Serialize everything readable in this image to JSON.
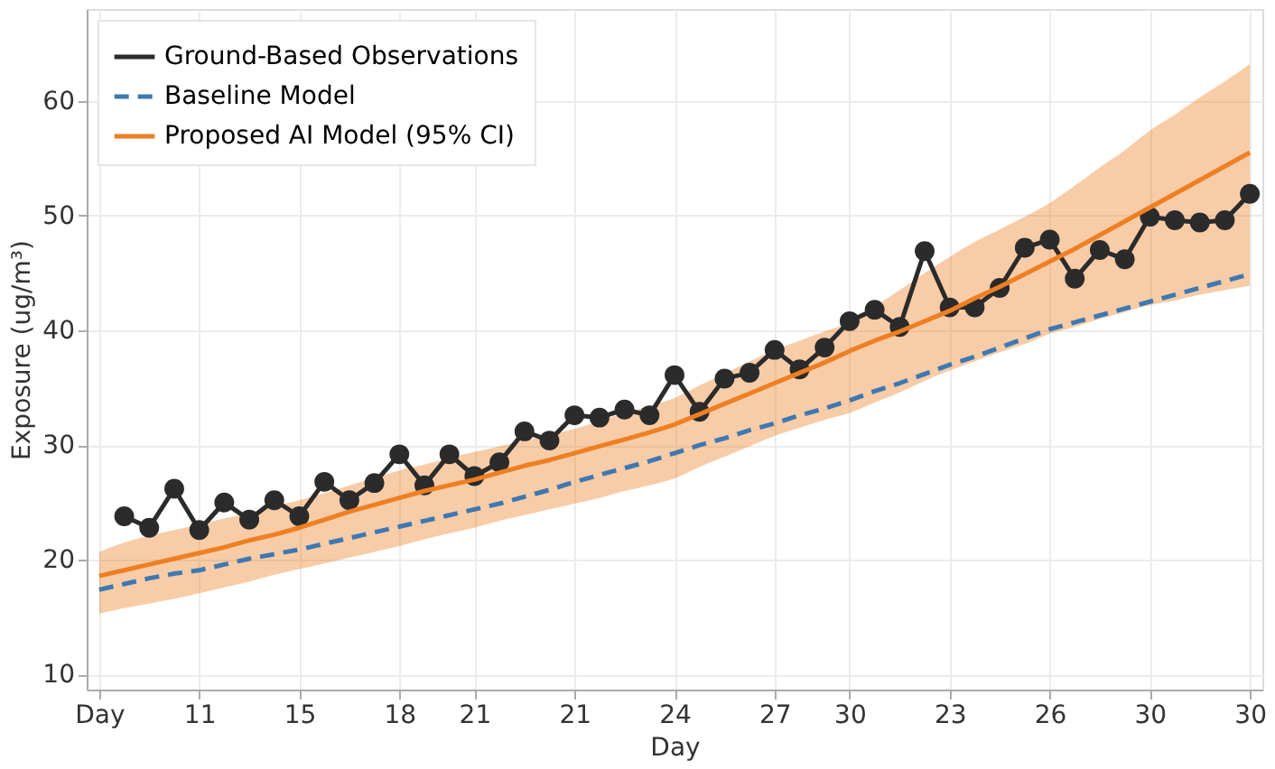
{
  "chart_data": {
    "type": "line",
    "xlabel": "Day",
    "ylabel": "Exposure (ug/m³)",
    "categories": [
      "Day",
      null,
      null,
      null,
      "11",
      null,
      null,
      null,
      "15",
      null,
      null,
      null,
      "18",
      null,
      null,
      "21",
      null,
      null,
      null,
      "21",
      null,
      null,
      null,
      "24",
      null,
      null,
      null,
      "27",
      null,
      null,
      "30",
      null,
      null,
      null,
      "23",
      null,
      null,
      null,
      "26",
      null,
      null,
      null,
      "30",
      null,
      null,
      null,
      "30"
    ],
    "ylim": [
      8.7,
      68
    ],
    "yticks": [
      10,
      20,
      30,
      40,
      50,
      60
    ],
    "grid": true,
    "legend": "top left",
    "series": [
      {
        "name": "Ground-Based Observations",
        "color": "#2b2b2b",
        "marker": "circle",
        "line_style": "solid",
        "values": [
          null,
          23.8,
          22.8,
          26.2,
          22.6,
          25.0,
          23.5,
          25.2,
          23.8,
          26.8,
          25.2,
          26.7,
          29.2,
          26.5,
          29.2,
          27.3,
          28.5,
          31.2,
          30.4,
          32.6,
          32.4,
          33.1,
          32.6,
          36.1,
          32.9,
          35.8,
          36.3,
          38.3,
          36.6,
          38.5,
          40.8,
          41.8,
          40.3,
          46.9,
          42.0,
          42.0,
          43.7,
          47.2,
          47.9,
          44.5,
          47.0,
          46.2,
          49.9,
          49.6,
          49.4,
          49.6,
          51.9
        ]
      },
      {
        "name": "Baseline Model",
        "color": "#3e78b2",
        "marker": "none",
        "line_style": "dashed",
        "values": [
          17.4,
          17.9,
          18.4,
          18.8,
          19.1,
          19.6,
          20.1,
          20.5,
          20.9,
          21.4,
          21.9,
          22.4,
          22.9,
          23.4,
          23.9,
          24.4,
          24.9,
          25.5,
          26.1,
          26.8,
          27.4,
          28.0,
          28.6,
          29.3,
          30.0,
          30.6,
          31.3,
          31.9,
          32.6,
          33.2,
          33.9,
          34.7,
          35.4,
          36.2,
          37.0,
          37.7,
          38.5,
          39.3,
          40.1,
          40.7,
          41.3,
          41.9,
          42.5,
          43.1,
          43.7,
          44.3,
          44.9
        ]
      },
      {
        "name": "Proposed AI Model (95% CI)",
        "color": "#ee7f22",
        "marker": "none",
        "line_style": "solid",
        "values": [
          18.6,
          19.1,
          19.6,
          20.1,
          20.6,
          21.1,
          21.7,
          22.2,
          22.8,
          23.5,
          24.2,
          24.8,
          25.4,
          26.0,
          26.5,
          27.0,
          27.6,
          28.2,
          28.7,
          29.3,
          29.9,
          30.5,
          31.1,
          31.8,
          32.7,
          33.6,
          34.5,
          35.4,
          36.3,
          37.2,
          38.2,
          39.1,
          39.9,
          40.8,
          41.7,
          42.8,
          43.8,
          44.9,
          46.0,
          47.1,
          48.3,
          49.5,
          50.7,
          51.9,
          53.1,
          54.3,
          55.5
        ],
        "lower": [
          15.3,
          15.8,
          16.2,
          16.6,
          17.1,
          17.6,
          18.1,
          18.7,
          19.2,
          19.7,
          20.2,
          20.7,
          21.2,
          21.8,
          22.3,
          22.8,
          23.4,
          23.9,
          24.4,
          24.9,
          25.4,
          26.0,
          26.5,
          27.1,
          28.1,
          29.0,
          29.9,
          30.8,
          31.5,
          32.2,
          32.8,
          33.7,
          34.6,
          35.6,
          36.5,
          37.3,
          38.1,
          38.8,
          39.7,
          40.3,
          41.0,
          41.6,
          42.2,
          42.6,
          43.1,
          43.5,
          43.9
        ],
        "upper": [
          20.7,
          21.5,
          22.1,
          22.6,
          23.1,
          23.6,
          24.1,
          24.7,
          25.2,
          25.8,
          26.5,
          27.1,
          27.8,
          28.3,
          28.9,
          29.4,
          29.9,
          30.4,
          30.9,
          31.4,
          32.1,
          32.8,
          33.4,
          34.1,
          35.2,
          36.2,
          37.3,
          38.3,
          39.1,
          39.9,
          40.7,
          42.1,
          43.5,
          45.0,
          46.4,
          47.7,
          48.8,
          49.9,
          51.1,
          52.6,
          54.2,
          55.7,
          57.4,
          58.8,
          60.3,
          61.7,
          63.2
        ]
      }
    ]
  }
}
